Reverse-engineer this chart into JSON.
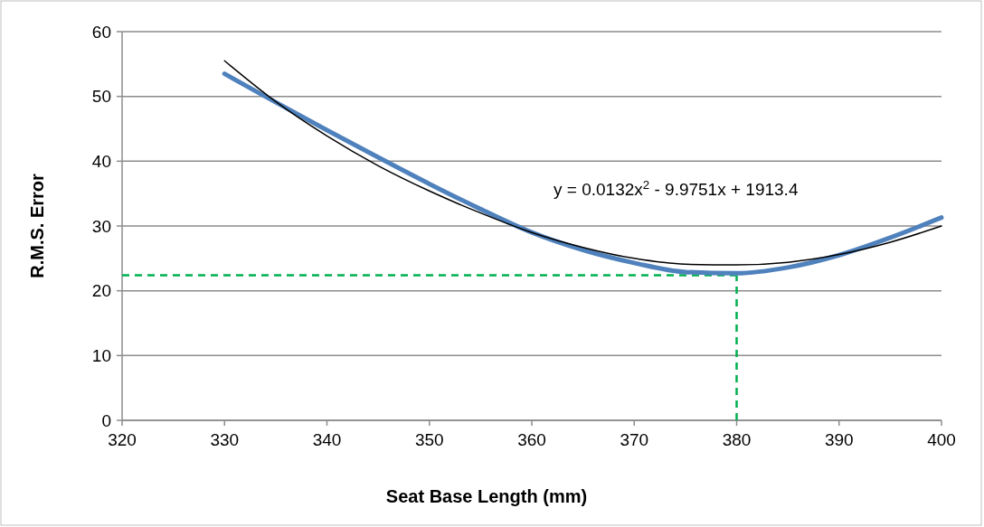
{
  "chart_data": {
    "type": "line",
    "xlabel": "Seat Base Length (mm)",
    "ylabel": "R.M.S. Error",
    "x": [
      330,
      335,
      340,
      345,
      350,
      355,
      360,
      365,
      370,
      375,
      380,
      385,
      390,
      395,
      400
    ],
    "series": [
      {
        "color": "#4f81bd",
        "values": [
          53.5,
          49.1,
          44.8,
          40.6,
          36.5,
          32.6,
          29.0,
          26.3,
          24.3,
          22.9,
          22.7,
          23.6,
          25.5,
          28.2,
          31.3
        ]
      },
      {
        "type": "line",
        "color": "#000000",
        "x": [
          330,
          335,
          340,
          345,
          350,
          355,
          360,
          365,
          370,
          375,
          380,
          385,
          390,
          395,
          400
        ],
        "values": [
          55.5,
          49.2,
          43.9,
          39.3,
          35.4,
          32.0,
          29.0,
          26.7,
          25.0,
          24.1,
          24.0,
          24.4,
          25.6,
          27.5,
          30.0
        ]
      }
    ],
    "xlim": [
      320,
      400
    ],
    "xticks": [
      320,
      330,
      340,
      350,
      360,
      370,
      380,
      390,
      400
    ],
    "ylim": [
      0,
      60
    ],
    "yticks": [
      0,
      10,
      20,
      30,
      40,
      50,
      60
    ],
    "grid": "y",
    "marker": "none",
    "ref_lines": [
      {
        "axis": "y",
        "value": 22.4,
        "color": "#00b050",
        "line_style": "dashed"
      },
      {
        "axis": "x",
        "value": 380,
        "color": "#00b050",
        "line_style": "dashed"
      }
    ],
    "annotations": [
      "y = 0.0132x$^{2}$ - 9.9751x + 1913.4"
    ]
  }
}
